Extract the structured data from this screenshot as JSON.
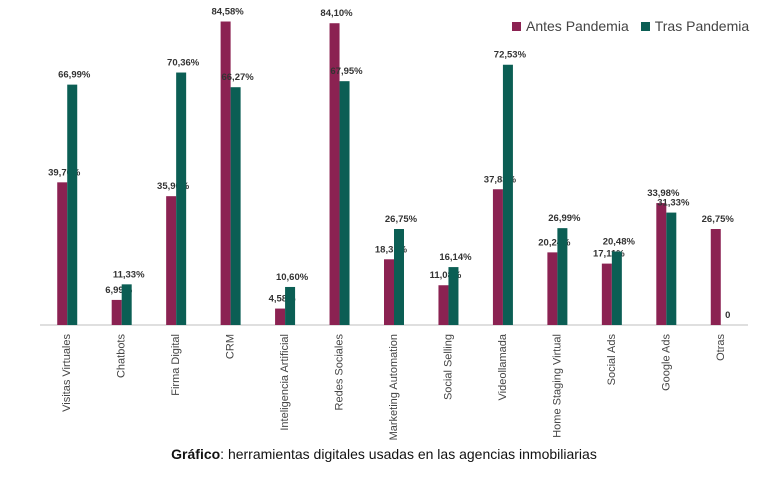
{
  "chart_data": {
    "type": "bar",
    "categories": [
      "Visitas Virtuales",
      "Chatbots",
      "Firma Digital",
      "CRM",
      "Inteligencia Artificial",
      "Redes Sociales",
      "Marketing Automation",
      "Social Selling",
      "Videollamada",
      "Home Staging Virtual",
      "Social Ads",
      "Google Ads",
      "Otras"
    ],
    "series": [
      {
        "name": "Antes Pandemia",
        "color": "#8b2252",
        "values": [
          39.76,
          6.99,
          35.9,
          84.58,
          4.58,
          84.1,
          18.31,
          11.08,
          37.83,
          20.24,
          17.11,
          33.98,
          26.75
        ],
        "labels": [
          "39,76%",
          "6,99%",
          "35,90%",
          "84,58%",
          "4,58%",
          "84,10%",
          "18,31%",
          "11,08%",
          "37,83%",
          "20,24%",
          "17,11%",
          "33,98%",
          "26,75%"
        ]
      },
      {
        "name": "Tras Pandemia",
        "color": "#0b5e54",
        "values": [
          66.99,
          11.33,
          70.36,
          66.27,
          10.6,
          67.95,
          26.75,
          16.14,
          72.53,
          26.99,
          20.48,
          31.33,
          0
        ],
        "labels": [
          "66,99%",
          "11,33%",
          "70,36%",
          "66,27%",
          "10,60%",
          "67,95%",
          "26,75%",
          "16,14%",
          "72,53%",
          "26,99%",
          "20,48%",
          "31,33%",
          "0"
        ]
      }
    ],
    "ylim": [
      0,
      85
    ],
    "grid": false,
    "legend_position": "top-right"
  },
  "caption": {
    "bold": "Gráfico",
    "rest": ": herramientas digitales usadas en las agencias inmobiliarias"
  }
}
